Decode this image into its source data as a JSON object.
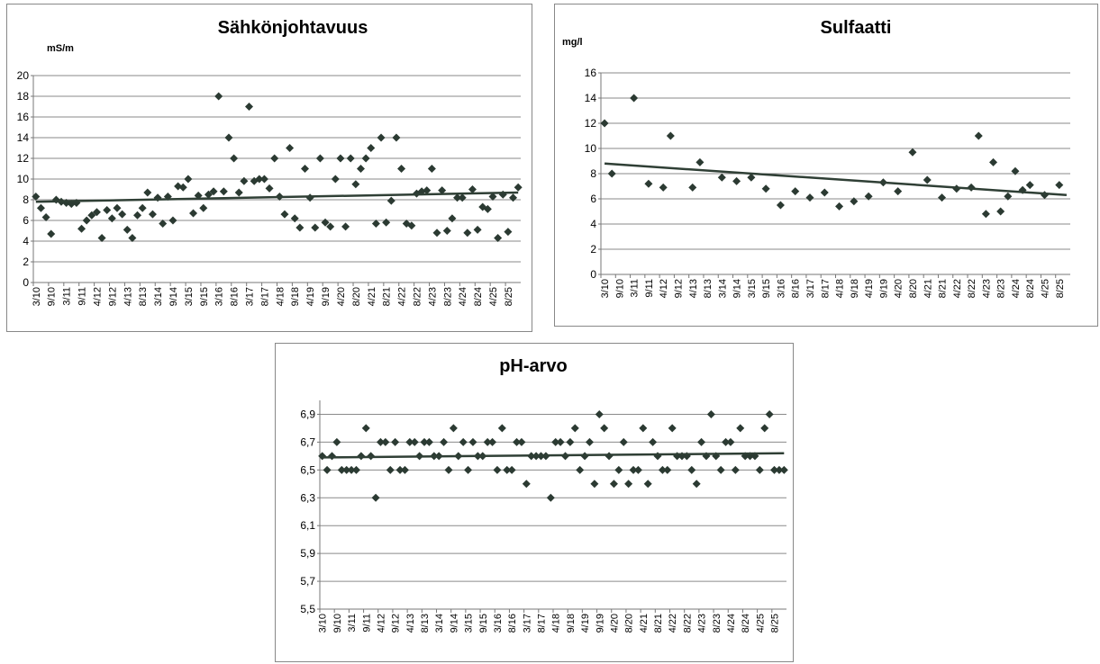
{
  "chart_data": [
    {
      "type": "scatter",
      "title": "Sähkönjohtavuus",
      "y_label": "mS/m",
      "color": "#2b3a32",
      "trend_color": "#2f3f35",
      "grid": true,
      "categories": [
        "3/10",
        null,
        null,
        "9/10",
        null,
        null,
        "3/11",
        null,
        null,
        "9/11",
        null,
        null,
        "4/12",
        null,
        null,
        "9/12",
        null,
        null,
        "4/13",
        null,
        null,
        "8/13",
        null,
        null,
        "3/14",
        null,
        null,
        "9/14",
        null,
        null,
        "3/15",
        null,
        null,
        "9/15",
        null,
        null,
        "3/16",
        null,
        null,
        "8/16",
        null,
        null,
        "3/17",
        null,
        null,
        "8/17",
        null,
        null,
        "4/18",
        null,
        null,
        "9/18",
        null,
        null,
        "4/19",
        null,
        null,
        "9/19",
        null,
        null,
        "4/20",
        null,
        null,
        "8/20",
        null,
        null,
        "4/21",
        null,
        null,
        "8/21",
        null,
        null,
        "4/22",
        null,
        null,
        "8/22",
        null,
        null,
        "4/23",
        null,
        null,
        "8/23",
        null,
        null,
        "4/24",
        null,
        null,
        "8/24",
        null,
        null,
        "4/25",
        null,
        null,
        "8/25",
        null,
        null
      ],
      "values": [
        8.3,
        7.2,
        6.3,
        4.7,
        8.0,
        7.8,
        7.7,
        7.6,
        7.7,
        5.2,
        6.0,
        6.5,
        6.8,
        4.3,
        7.0,
        6.2,
        7.2,
        6.6,
        5.1,
        4.3,
        6.5,
        7.2,
        8.7,
        6.6,
        8.2,
        5.7,
        8.3,
        6.0,
        9.3,
        9.2,
        10.0,
        6.7,
        8.4,
        7.2,
        8.5,
        8.8,
        18.0,
        8.8,
        14.0,
        12.0,
        8.7,
        9.8,
        17.0,
        9.8,
        10.0,
        10.0,
        9.1,
        12.0,
        8.3,
        6.6,
        13.0,
        6.2,
        5.3,
        11.0,
        8.2,
        5.3,
        12.0,
        5.8,
        5.4,
        10.0,
        12.0,
        5.4,
        12.0,
        9.5,
        11.0,
        12.0,
        13.0,
        5.7,
        14.0,
        5.8,
        7.9,
        14.0,
        11.0,
        5.7,
        5.5,
        8.6,
        8.8,
        8.9,
        11.0,
        4.8,
        8.9,
        5.0,
        6.2,
        8.2,
        8.2,
        4.8,
        9.0,
        5.1,
        7.3,
        7.1,
        8.3,
        4.3,
        8.5,
        4.9,
        8.2,
        9.2
      ],
      "trendline": [
        7.8,
        8.7
      ],
      "ylim": [
        0,
        20
      ],
      "yticks": [
        0,
        2,
        4,
        6,
        8,
        10,
        12,
        14,
        16,
        18,
        20
      ]
    },
    {
      "type": "scatter",
      "title": "Sulfaatti",
      "y_label": "mg/l",
      "color": "#2b3a32",
      "trend_color": "#2f3f35",
      "grid": true,
      "categories": [
        "3/10",
        null,
        "9/10",
        null,
        "3/11",
        null,
        "9/11",
        null,
        "4/12",
        null,
        "9/12",
        null,
        "4/13",
        null,
        "8/13",
        null,
        "3/14",
        null,
        "9/14",
        null,
        "3/15",
        null,
        "9/15",
        null,
        "3/16",
        null,
        "8/16",
        null,
        "3/17",
        null,
        "8/17",
        null,
        "4/18",
        null,
        "9/18",
        null,
        "4/19",
        null,
        "9/19",
        null,
        "4/20",
        null,
        "8/20",
        null,
        "4/21",
        null,
        "8/21",
        null,
        "4/22",
        null,
        "8/22",
        null,
        "4/23",
        null,
        "8/23",
        null,
        "4/24",
        null,
        "8/24",
        null,
        "4/25",
        null,
        "8/25",
        null
      ],
      "values": [
        12,
        8,
        null,
        null,
        14,
        null,
        7.2,
        null,
        6.9,
        11,
        null,
        null,
        6.9,
        8.9,
        null,
        null,
        7.7,
        null,
        7.4,
        null,
        7.7,
        null,
        6.8,
        null,
        5.5,
        null,
        6.6,
        null,
        6.1,
        null,
        6.5,
        null,
        5.4,
        null,
        5.8,
        null,
        6.2,
        null,
        7.3,
        null,
        6.6,
        null,
        9.7,
        null,
        7.5,
        null,
        6.1,
        null,
        6.8,
        null,
        6.9,
        11,
        4.8,
        8.9,
        5.0,
        6.2,
        8.2,
        6.7,
        7.1,
        null,
        6.3,
        null,
        7.1,
        null
      ],
      "trendline": [
        8.8,
        6.3
      ],
      "ylim": [
        0,
        16
      ],
      "yticks": [
        0,
        2,
        4,
        6,
        8,
        10,
        12,
        14,
        16
      ]
    },
    {
      "type": "scatter",
      "title": "pH-arvo",
      "color": "#2b3a32",
      "trend_color": "#2f3f35",
      "grid": true,
      "categories": [
        "3/10",
        null,
        null,
        "9/10",
        null,
        null,
        "3/11",
        null,
        null,
        "9/11",
        null,
        null,
        "4/12",
        null,
        null,
        "9/12",
        null,
        null,
        "4/13",
        null,
        null,
        "8/13",
        null,
        null,
        "3/14",
        null,
        null,
        "9/14",
        null,
        null,
        "3/15",
        null,
        null,
        "9/15",
        null,
        null,
        "3/16",
        null,
        null,
        "8/16",
        null,
        null,
        "3/17",
        null,
        null,
        "8/17",
        null,
        null,
        "4/18",
        null,
        null,
        "9/18",
        null,
        null,
        "4/19",
        null,
        null,
        "9/19",
        null,
        null,
        "4/20",
        null,
        null,
        "8/20",
        null,
        null,
        "4/21",
        null,
        null,
        "8/21",
        null,
        null,
        "4/22",
        null,
        null,
        "8/22",
        null,
        null,
        "4/23",
        null,
        null,
        "8/23",
        null,
        null,
        "4/24",
        null,
        null,
        "8/24",
        null,
        null,
        "4/25",
        null,
        null,
        "8/25",
        null,
        null
      ],
      "values": [
        6.6,
        6.5,
        6.6,
        6.7,
        6.5,
        6.5,
        6.5,
        6.5,
        6.6,
        6.8,
        6.6,
        6.3,
        6.7,
        6.7,
        6.5,
        6.7,
        6.5,
        6.5,
        6.7,
        6.7,
        6.6,
        6.7,
        6.7,
        6.6,
        6.6,
        6.7,
        6.5,
        6.8,
        6.6,
        6.7,
        6.5,
        6.7,
        6.6,
        6.6,
        6.7,
        6.7,
        6.5,
        6.8,
        6.5,
        6.5,
        6.7,
        6.7,
        6.4,
        6.6,
        6.6,
        6.6,
        6.6,
        6.3,
        6.7,
        6.7,
        6.6,
        6.7,
        6.8,
        6.5,
        6.6,
        6.7,
        6.4,
        6.9,
        6.8,
        6.6,
        6.4,
        6.5,
        6.7,
        6.4,
        6.5,
        6.5,
        6.8,
        6.4,
        6.7,
        6.6,
        6.5,
        6.5,
        6.8,
        6.6,
        6.6,
        6.6,
        6.5,
        6.4,
        6.7,
        6.6,
        6.9,
        6.6,
        6.5,
        6.7,
        6.7,
        6.5,
        6.8,
        6.6,
        6.6,
        6.6,
        6.5,
        6.8,
        6.9,
        6.5,
        6.5,
        6.5
      ],
      "trendline": [
        6.59,
        6.62
      ],
      "ylim": [
        5.5,
        7.0
      ],
      "yticks": [
        {
          "value": 5.5,
          "label": "5,5"
        },
        {
          "value": 5.7,
          "label": "5,7"
        },
        {
          "value": 5.9,
          "label": "5,9"
        },
        {
          "value": 6.1,
          "label": "6,1"
        },
        {
          "value": 6.3,
          "label": "6,3"
        },
        {
          "value": 6.5,
          "label": "6,5"
        },
        {
          "value": 6.7,
          "label": "6,7"
        },
        {
          "value": 6.9,
          "label": "6,9"
        }
      ]
    }
  ]
}
